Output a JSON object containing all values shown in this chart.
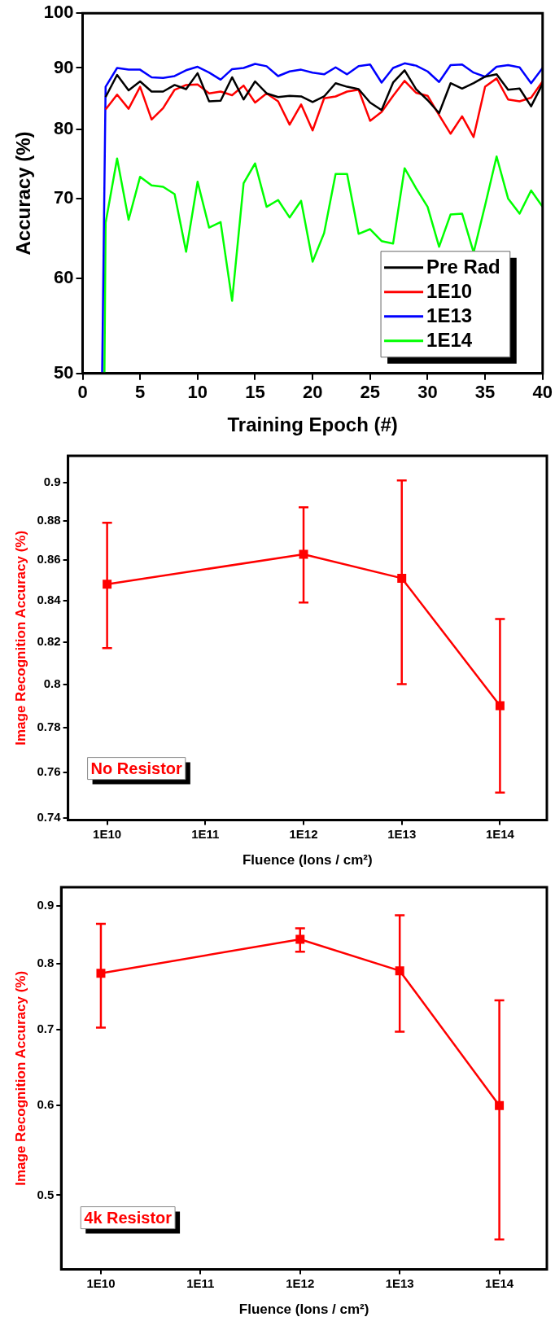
{
  "chart_data": [
    {
      "type": "line",
      "xlabel": "Training Epoch (#)",
      "ylabel": "Accuracy (%)",
      "log": "y",
      "xlim": [
        0,
        40
      ],
      "xticks": [
        0,
        5,
        10,
        15,
        20,
        25,
        30,
        35,
        40
      ],
      "ylim": [
        50,
        100
      ],
      "yticks": [
        50,
        60,
        70,
        80,
        90,
        100
      ],
      "grid": false,
      "legend": "bottom right",
      "marker": "none",
      "line_style": "solid",
      "series": [
        {
          "name": "Pre Rad",
          "color": "#000000",
          "x": [
            2,
            3,
            4,
            5,
            6,
            7,
            8,
            9,
            10,
            11,
            12,
            13,
            14,
            15,
            16,
            17,
            18,
            19,
            20,
            21,
            22,
            23,
            24,
            25,
            26,
            27,
            28,
            29,
            30,
            31,
            32,
            33,
            34,
            35,
            36,
            37,
            38,
            39,
            40
          ],
          "values": [
            85.1,
            88.8,
            86.2,
            87.7,
            86,
            86,
            87.1,
            86.4,
            89.1,
            84.4,
            84.5,
            88.4,
            84.7,
            87.7,
            85.7,
            85.1,
            85.3,
            85.2,
            84.3,
            85.2,
            87.4,
            86.8,
            86.4,
            84.2,
            83,
            87.5,
            89.6,
            86.4,
            84.6,
            82.5,
            87.4,
            86.5,
            87.4,
            88.5,
            88.9,
            86.3,
            86.5,
            83.6,
            87.3
          ]
        },
        {
          "name": "1E10",
          "color": "#ff0000",
          "x": [
            2,
            3,
            4,
            5,
            6,
            7,
            8,
            9,
            10,
            11,
            12,
            13,
            14,
            15,
            16,
            17,
            18,
            19,
            20,
            21,
            22,
            23,
            24,
            25,
            26,
            27,
            28,
            29,
            30,
            31,
            32,
            33,
            34,
            35,
            36,
            37,
            38,
            39,
            40
          ],
          "values": [
            83.1,
            85.5,
            83.2,
            86.8,
            81.5,
            83.3,
            86.3,
            87.1,
            87.2,
            85.7,
            86,
            85.4,
            87,
            84.2,
            85.7,
            84.4,
            80.7,
            83.9,
            79.8,
            84.9,
            85.2,
            86,
            86.3,
            81.3,
            82.7,
            85.3,
            87.8,
            85.8,
            85.3,
            82.2,
            79.3,
            82,
            78.8,
            86.8,
            88.2,
            84.7,
            84.4,
            85,
            87.7
          ]
        },
        {
          "name": "1E13",
          "color": "#0000ff",
          "x": [
            1.7,
            2,
            3,
            4,
            5,
            6,
            7,
            8,
            9,
            10,
            11,
            12,
            13,
            14,
            15,
            16,
            17,
            18,
            19,
            20,
            21,
            22,
            23,
            24,
            25,
            26,
            27,
            28,
            29,
            30,
            31,
            32,
            33,
            34,
            35,
            36,
            37,
            38,
            39,
            40
          ],
          "values": [
            50,
            86.8,
            90,
            89.7,
            89.7,
            88.4,
            88.3,
            88.6,
            89.6,
            90.2,
            89.2,
            88,
            89.8,
            90,
            90.7,
            90.3,
            88.6,
            89.4,
            89.7,
            89.2,
            88.9,
            90.1,
            88.9,
            90.3,
            90.6,
            87.5,
            90,
            90.8,
            90.4,
            89.4,
            87.6,
            90.5,
            90.6,
            89.2,
            88.5,
            90.2,
            90.5,
            90.1,
            87.4,
            90
          ]
        },
        {
          "name": "1E14",
          "color": "#00ff00",
          "x": [
            1.9,
            2,
            3,
            4,
            5,
            6,
            7,
            8,
            9,
            10,
            11,
            12,
            13,
            14,
            15,
            16,
            17,
            18,
            19,
            20,
            21,
            22,
            23,
            24,
            25,
            26,
            27,
            28,
            29,
            30,
            31,
            32,
            33,
            34,
            35,
            36,
            37,
            38,
            39,
            40
          ],
          "values": [
            50,
            66.8,
            75.6,
            67.2,
            73,
            71.8,
            71.6,
            70.6,
            63.2,
            72.3,
            66.2,
            66.9,
            57.5,
            72.1,
            74.9,
            68.9,
            69.8,
            67.5,
            69.7,
            62,
            65.5,
            73.4,
            73.4,
            65.4,
            66,
            64.5,
            64.2,
            74.2,
            71.4,
            68.9,
            63.8,
            67.9,
            68,
            63.1,
            69.1,
            75.9,
            70,
            68,
            71.1,
            68.9
          ]
        }
      ]
    },
    {
      "type": "line",
      "xlabel": "Fluence (Ions / cm²)",
      "ylabel": "Image Recognition Accuracy (%)",
      "annotations": [
        "No Resistor"
      ],
      "log": "xy",
      "xlim": [
        4000000000,
        300000000000000
      ],
      "xticks": [
        {
          "value": 10000000000,
          "label": "1E10"
        },
        {
          "value": 100000000000,
          "label": "1E11"
        },
        {
          "value": 1000000000000,
          "label": "1E12"
        },
        {
          "value": 10000000000000,
          "label": "1E13"
        },
        {
          "value": 100000000000000,
          "label": "1E14"
        }
      ],
      "ylim": [
        0.739,
        0.914
      ],
      "yticks": [
        0.74,
        0.76,
        0.78,
        0.8,
        0.82,
        0.84,
        0.86,
        0.88,
        0.9
      ],
      "grid": false,
      "marker": "square",
      "line_style": "solid",
      "x": [
        10000000000,
        1000000000000,
        10000000000000,
        100000000000000
      ],
      "series": [
        {
          "color": "#ff0000",
          "values": [
            0.848,
            0.863,
            0.851,
            0.79
          ],
          "errors": [
            [
              0.817,
              0.879
            ],
            [
              0.839,
              0.887
            ],
            [
              0.8,
              0.901
            ],
            [
              0.751,
              0.831
            ]
          ]
        }
      ]
    },
    {
      "type": "line",
      "xlabel": "Fluence (Ions / cm²)",
      "ylabel": "Image Recognition Accuracy (%)",
      "annotations": [
        "4k Resistor"
      ],
      "log": "xy",
      "xlim": [
        4000000000,
        300000000000000
      ],
      "xticks": [
        {
          "value": 10000000000,
          "label": "1E10"
        },
        {
          "value": 100000000000,
          "label": "1E11"
        },
        {
          "value": 1000000000000,
          "label": "1E12"
        },
        {
          "value": 10000000000000,
          "label": "1E13"
        },
        {
          "value": 100000000000000,
          "label": "1E14"
        }
      ],
      "ylim": [
        0.43,
        0.935
      ],
      "yticks": [
        0.5,
        0.6,
        0.7,
        0.8,
        0.9
      ],
      "grid": false,
      "marker": "square",
      "line_style": "solid",
      "x": [
        10000000000,
        1000000000000,
        10000000000000,
        100000000000000
      ],
      "series": [
        {
          "color": "#ff0000",
          "values": [
            0.785,
            0.841,
            0.789,
            0.6
          ],
          "errors": [
            [
              0.703,
              0.868
            ],
            [
              0.82,
              0.86
            ],
            [
              0.697,
              0.883
            ],
            [
              0.457,
              0.743
            ]
          ]
        }
      ]
    }
  ]
}
